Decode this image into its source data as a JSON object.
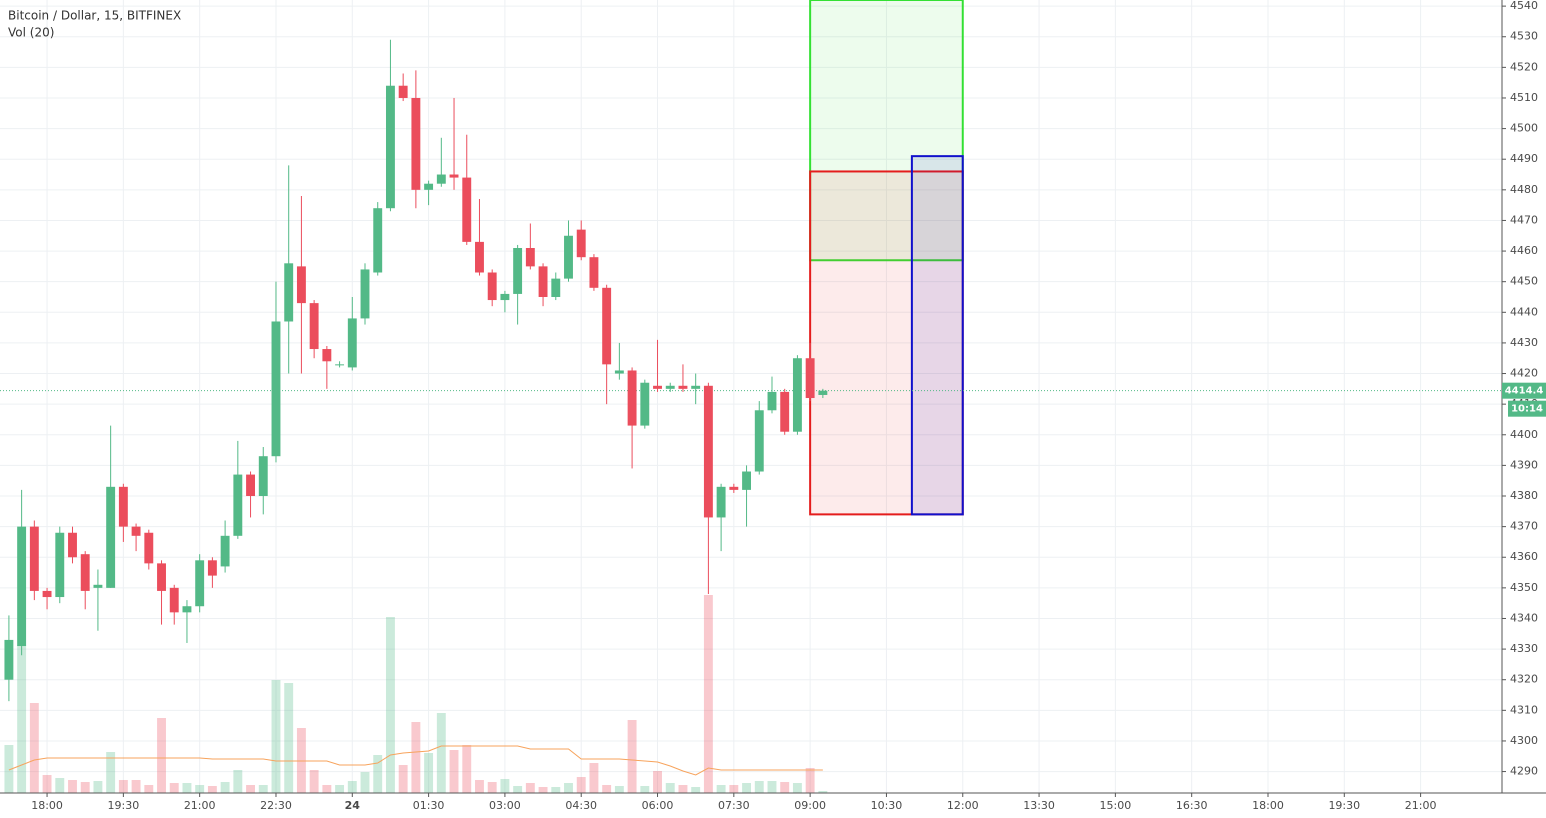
{
  "chart_data": {
    "type": "candlestick",
    "title": "Bitcoin / Dollar, 15, BITFINEX",
    "volume_label": "Vol (20)",
    "up_color": "#53b987",
    "down_color": "#eb4d5c",
    "ma_color": "#f7a35c",
    "open": [
      4320,
      4331,
      4370,
      4349,
      4347,
      4368,
      4361,
      4350,
      4350,
      4383,
      4370,
      4368,
      4358,
      4350,
      4342,
      4344,
      4359,
      4357,
      4367,
      4387,
      4380,
      4393,
      4437,
      4455,
      4443,
      4428,
      4423,
      4422,
      4438,
      4453,
      4474,
      4514,
      4510,
      4480,
      4482,
      4485,
      4484,
      4463,
      4453,
      4444,
      4446,
      4461,
      4455,
      4445,
      4451,
      4467,
      4458,
      4448,
      4420,
      4421,
      4403,
      4416,
      4415,
      4416,
      4415,
      4416,
      4373,
      4383,
      4382,
      4388,
      4408,
      4414,
      4401,
      4425,
      4413
    ],
    "high": [
      4341,
      4382,
      4372,
      4350,
      4370,
      4370,
      4362,
      4356,
      4403,
      4384,
      4371,
      4369,
      4359,
      4351,
      4346,
      4361,
      4360,
      4372,
      4398,
      4388,
      4396,
      4450,
      4488,
      4478,
      4444,
      4429,
      4424,
      4445,
      4456,
      4476,
      4529,
      4518,
      4519,
      4483,
      4497,
      4510,
      4498,
      4477,
      4454,
      4447,
      4462,
      4469,
      4456,
      4453,
      4470,
      4470,
      4459,
      4449,
      4430,
      4422,
      4418,
      4431,
      4417,
      4423,
      4420,
      4417,
      4384,
      4384,
      4390,
      4411,
      4419,
      4415,
      4426,
      4430,
      4415
    ],
    "low": [
      4313,
      4328,
      4346,
      4343,
      4345,
      4358,
      4343,
      4336,
      4350,
      4365,
      4362,
      4356,
      4338,
      4338,
      4332,
      4342,
      4350,
      4355,
      4366,
      4373,
      4374,
      4391,
      4420,
      4420,
      4425,
      4415,
      4422,
      4421,
      4436,
      4452,
      4473,
      4509,
      4474,
      4475,
      4481,
      4480,
      4462,
      4452,
      4442,
      4440,
      4436,
      4454,
      4442,
      4444,
      4450,
      4457,
      4447,
      4410,
      4418,
      4389,
      4402,
      4414,
      4414,
      4414,
      4410,
      4348,
      4362,
      4381,
      4370,
      4387,
      4407,
      4400,
      4400,
      4411,
      4412
    ],
    "close": [
      4333,
      4370,
      4349,
      4347,
      4368,
      4360,
      4349,
      4351,
      4383,
      4370,
      4367,
      4358,
      4349,
      4342,
      4344,
      4359,
      4354,
      4367,
      4387,
      4380,
      4393,
      4437,
      4456,
      4443,
      4428,
      4424,
      4423,
      4438,
      4454,
      4474,
      4514,
      4510,
      4480,
      4482,
      4485,
      4484,
      4463,
      4453,
      4444,
      4446,
      4461,
      4455,
      4445,
      4451,
      4465,
      4458,
      4448,
      4423,
      4421,
      4403,
      4417,
      4415,
      4416,
      4415,
      4416,
      4373,
      4383,
      4382,
      4388,
      4408,
      4414,
      4401,
      4425,
      4412,
      4414.4
    ],
    "volume": [
      48,
      148,
      90,
      18,
      15,
      13,
      11,
      12,
      41,
      13,
      13,
      8,
      75,
      10,
      10,
      8,
      7,
      11,
      23,
      8,
      8,
      113,
      110,
      65,
      23,
      8,
      8,
      12,
      21,
      38,
      176,
      28,
      71,
      40,
      80,
      43,
      48,
      13,
      11,
      14,
      7,
      10,
      6,
      6,
      10,
      16,
      30,
      8,
      7,
      73,
      7,
      22,
      10,
      8,
      6,
      198,
      8,
      8,
      10,
      12,
      12,
      11,
      10,
      25,
      2
    ],
    "volume_ma": [
      23,
      28,
      33,
      35,
      35,
      35,
      35,
      35,
      35,
      35,
      35,
      35,
      35,
      35,
      35,
      35,
      34,
      34,
      34,
      34,
      34,
      32,
      32,
      32,
      32,
      32,
      28,
      28,
      28,
      30,
      38,
      40,
      41,
      42,
      47,
      47,
      47,
      47,
      47,
      47,
      47,
      44,
      44,
      44,
      44,
      34,
      34,
      34,
      34,
      33,
      32,
      31,
      27,
      22,
      18,
      25,
      23,
      23,
      23,
      23,
      23,
      23,
      23,
      23,
      23
    ],
    "vlim": [
      0,
      250
    ],
    "ylim": [
      4283,
      4542
    ],
    "yticks": [
      4290,
      4300,
      4310,
      4320,
      4330,
      4340,
      4350,
      4360,
      4370,
      4380,
      4390,
      4400,
      4410,
      4420,
      4430,
      4440,
      4450,
      4460,
      4470,
      4480,
      4490,
      4500,
      4510,
      4520,
      4530,
      4540
    ],
    "xlim": [
      -0.7,
      117.4
    ],
    "xticks": [
      {
        "value": 3,
        "label": "18:00"
      },
      {
        "value": 9,
        "label": "19:30"
      },
      {
        "value": 15,
        "label": "21:00"
      },
      {
        "value": 21,
        "label": "22:30"
      },
      {
        "value": 27,
        "label": "24"
      },
      {
        "value": 33,
        "label": "01:30"
      },
      {
        "value": 39,
        "label": "03:00"
      },
      {
        "value": 45,
        "label": "04:30"
      },
      {
        "value": 51,
        "label": "06:00"
      },
      {
        "value": 57,
        "label": "07:30"
      },
      {
        "value": 63,
        "label": "09:00"
      },
      {
        "value": 69,
        "label": "10:30"
      },
      {
        "value": 75,
        "label": "12:00"
      },
      {
        "value": 81,
        "label": "13:30"
      },
      {
        "value": 87,
        "label": "15:00"
      },
      {
        "value": 93,
        "label": "16:30"
      },
      {
        "value": 99,
        "label": "18:00"
      },
      {
        "value": 105,
        "label": "19:30"
      },
      {
        "value": 111,
        "label": "21:00"
      }
    ],
    "grid": true,
    "last_price": 4414.4,
    "countdown": "10:14",
    "drawings": [
      {
        "x": [
          63,
          75
        ],
        "y": [
          4457,
          4542
        ],
        "color": "#33e033"
      },
      {
        "x": [
          63,
          75
        ],
        "y": [
          4374,
          4486
        ],
        "color": "#e41c1c"
      },
      {
        "x": [
          71,
          75
        ],
        "y": [
          4374,
          4491
        ],
        "color": "#1010cc"
      }
    ]
  }
}
